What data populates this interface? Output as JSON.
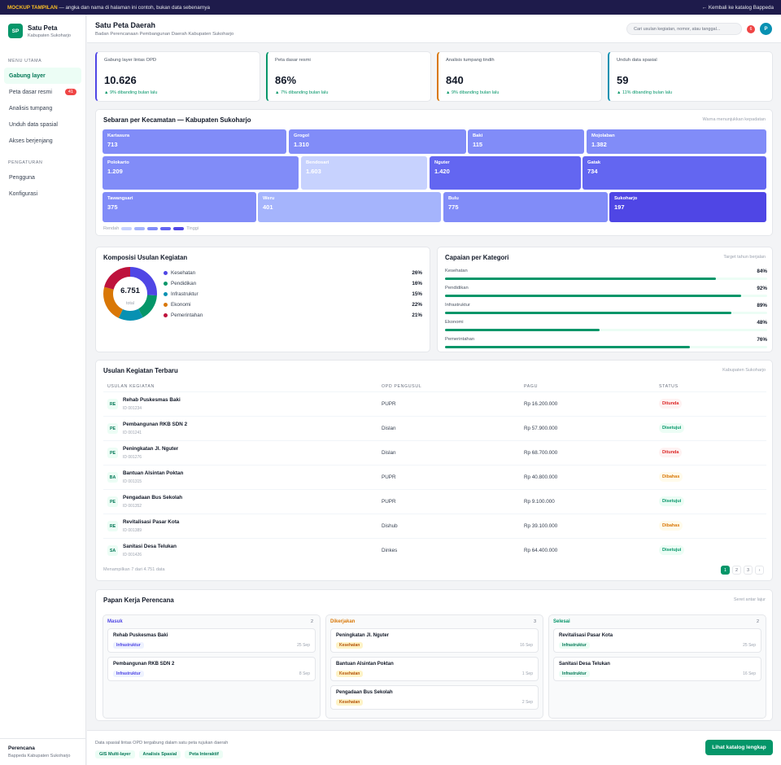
{
  "banner": {
    "tag": "MOCKUP TAMPILAN",
    "text": "— angka dan nama di halaman ini contoh, bukan data sebenarnya",
    "back": "← Kembali ke katalog Bappeda"
  },
  "sidebar": {
    "logo": "SP",
    "app_name": "Satu Peta",
    "app_sub": "Kabupaten Sukoharjo",
    "section_main": "MENU UTAMA",
    "items": [
      {
        "label": "Gabung layer",
        "active": true
      },
      {
        "label": "Peta dasar resmi",
        "badge": "41"
      },
      {
        "label": "Analisis tumpang"
      },
      {
        "label": "Unduh data spasial"
      },
      {
        "label": "Akses berjenjang"
      }
    ],
    "section_settings": "PENGATURAN",
    "settings": [
      {
        "label": "Pengguna"
      },
      {
        "label": "Konfigurasi"
      }
    ],
    "footer_title": "Perencana",
    "footer_sub": "Bappeda Kabupaten Sukoharjo"
  },
  "header": {
    "title": "Satu Peta Daerah",
    "subtitle": "Badan Perencanaan Pembangunan Daerah Kabupaten Sukoharjo",
    "search_placeholder": "Cari usulan kegiatan, nomor, atau tanggal...",
    "notif_count": "6",
    "avatar": "P"
  },
  "kpis": [
    {
      "label": "Gabung layer lintas OPD",
      "value": "10.626",
      "delta": "▲ 9% dibanding bulan lalu",
      "color": "#4f46e5"
    },
    {
      "label": "Peta dasar resmi",
      "value": "86%",
      "delta": "▲ 7% dibanding bulan lalu",
      "color": "#059669"
    },
    {
      "label": "Analisis tumpang tindih",
      "value": "840",
      "delta": "▲ 9% dibanding bulan lalu",
      "color": "#d97706"
    },
    {
      "label": "Unduh data spasial",
      "value": "59",
      "delta": "▲ 11% dibanding bulan lalu",
      "color": "#0891b2"
    }
  ],
  "treemap": {
    "title": "Sebaran per Kecamatan — Kabupaten Sukoharjo",
    "note": "Warna menunjukkan kepadatan",
    "tiles": [
      {
        "name": "Kartasura",
        "value": "713",
        "color": "#818cf8"
      },
      {
        "name": "Grogol",
        "value": "1.310",
        "color": "#818cf8"
      },
      {
        "name": "Baki",
        "value": "115",
        "color": "#818cf8"
      },
      {
        "name": "Mojolaban",
        "value": "1.382",
        "color": "#818cf8"
      },
      {
        "name": "Polokarto",
        "value": "1.209",
        "color": "#818cf8"
      },
      {
        "name": "Bendosari",
        "value": "1.603",
        "color": "#c7d2fe"
      },
      {
        "name": "Nguter",
        "value": "1.420",
        "color": "#6366f1"
      },
      {
        "name": "Gatak",
        "value": "734",
        "color": "#6366f1"
      },
      {
        "name": "Tawangsari",
        "value": "375",
        "color": "#818cf8"
      },
      {
        "name": "Weru",
        "value": "401",
        "color": "#a5b4fc"
      },
      {
        "name": "Bulu",
        "value": "775",
        "color": "#818cf8"
      },
      {
        "name": "Sukoharjo",
        "value": "197",
        "color": "#4f46e5"
      }
    ],
    "legend_low": "Rendah",
    "legend_high": "Tinggi",
    "legend_colors": [
      "#c7d2fe",
      "#a5b4fc",
      "#818cf8",
      "#6366f1",
      "#4f46e5"
    ]
  },
  "composition": {
    "title": "Komposisi Usulan Kegiatan",
    "total": "6.751",
    "total_label": "total",
    "items": [
      {
        "label": "Kesehatan",
        "pct": "26%",
        "value": 26,
        "color": "#4f46e5"
      },
      {
        "label": "Pendidikan",
        "pct": "16%",
        "value": 16,
        "color": "#059669"
      },
      {
        "label": "Infrastruktur",
        "pct": "15%",
        "value": 15,
        "color": "#0891b2"
      },
      {
        "label": "Ekonomi",
        "pct": "22%",
        "value": 22,
        "color": "#d97706"
      },
      {
        "label": "Pemerintahan",
        "pct": "21%",
        "value": 21,
        "color": "#be123c"
      }
    ]
  },
  "achievement": {
    "title": "Capaian per Kategori",
    "note": "Target tahun berjalan",
    "items": [
      {
        "label": "Kesehatan",
        "pct": "84%",
        "value": 84
      },
      {
        "label": "Pendidikan",
        "pct": "92%",
        "value": 92
      },
      {
        "label": "Infrastruktur",
        "pct": "89%",
        "value": 89
      },
      {
        "label": "Ekonomi",
        "pct": "48%",
        "value": 48
      },
      {
        "label": "Pemerintahan",
        "pct": "76%",
        "value": 76
      }
    ]
  },
  "table": {
    "title": "Usulan Kegiatan Terbaru",
    "note": "Kabupaten Sukoharjo",
    "columns": [
      "USULAN KEGIATAN",
      "OPD PENGUSUL",
      "PAGU",
      "STATUS"
    ],
    "rows": [
      {
        "abbr": "RE",
        "name": "Rehab Puskesmas Baki",
        "id": "ID 001234",
        "opd": "PUPR",
        "pagu": "Rp 16.200.000",
        "status": "Ditunda",
        "tone": "red"
      },
      {
        "abbr": "PE",
        "name": "Pembangunan RKB SDN 2",
        "id": "ID 001241",
        "opd": "Dislan",
        "pagu": "Rp 57.900.000",
        "status": "Disetujui",
        "tone": "green"
      },
      {
        "abbr": "PE",
        "name": "Peningkatan Jl. Nguter",
        "id": "ID 001276",
        "opd": "Dislan",
        "pagu": "Rp 68.700.000",
        "status": "Ditunda",
        "tone": "red"
      },
      {
        "abbr": "BA",
        "name": "Bantuan Alsintan Poktan",
        "id": "ID 001315",
        "opd": "PUPR",
        "pagu": "Rp 40.800.000",
        "status": "Dibahas",
        "tone": "amber"
      },
      {
        "abbr": "PE",
        "name": "Pengadaan Bus Sekolah",
        "id": "ID 001352",
        "opd": "PUPR",
        "pagu": "Rp 9.100.000",
        "status": "Disetujui",
        "tone": "green"
      },
      {
        "abbr": "RE",
        "name": "Revitalisasi Pasar Kota",
        "id": "ID 001389",
        "opd": "Dishub",
        "pagu": "Rp 39.100.000",
        "status": "Dibahas",
        "tone": "amber"
      },
      {
        "abbr": "SA",
        "name": "Sanitasi Desa Telukan",
        "id": "ID 001426",
        "opd": "Dinkes",
        "pagu": "Rp 64.400.000",
        "status": "Disetujui",
        "tone": "green"
      }
    ],
    "footer": "Menampilkan 7 dari 4.751 data",
    "pages": [
      "1",
      "2",
      "3",
      "›"
    ]
  },
  "kanban": {
    "title": "Papan Kerja Perencana",
    "note": "Seret antar lajur",
    "columns": [
      {
        "name": "Masuk",
        "count": "2",
        "color": "#4f46e5",
        "cards": [
          {
            "title": "Rehab Puskesmas Baki",
            "tag": "Infrastruktur",
            "tone": "blue",
            "date": "25 Sep"
          },
          {
            "title": "Pembangunan RKB SDN 2",
            "tag": "Infrastruktur",
            "tone": "blue",
            "date": "8 Sep"
          }
        ]
      },
      {
        "name": "Dikerjakan",
        "count": "3",
        "color": "#d97706",
        "cards": [
          {
            "title": "Peningkatan Jl. Nguter",
            "tag": "Kesehatan",
            "tone": "amber",
            "date": "16 Sep"
          },
          {
            "title": "Bantuan Alsintan Poktan",
            "tag": "Kesehatan",
            "tone": "amber",
            "date": "1 Sep"
          },
          {
            "title": "Pengadaan Bus Sekolah",
            "tag": "Kesehatan",
            "tone": "amber",
            "date": "2 Sep"
          }
        ]
      },
      {
        "name": "Selesai",
        "count": "2",
        "color": "#059669",
        "cards": [
          {
            "title": "Revitalisasi Pasar Kota",
            "tag": "Infrastruktur",
            "tone": "green",
            "date": "25 Sep"
          },
          {
            "title": "Sanitasi Desa Telukan",
            "tag": "Infrastruktur",
            "tone": "green",
            "date": "16 Sep"
          }
        ]
      }
    ]
  },
  "footer": {
    "desc": "Data spasial lintas OPD tergabung dalam satu peta rujukan daerah",
    "tags": [
      "GIS Multi-layer",
      "Analisis Spasial",
      "Peta Interaktif"
    ],
    "cta": "Lihat katalog lengkap"
  }
}
